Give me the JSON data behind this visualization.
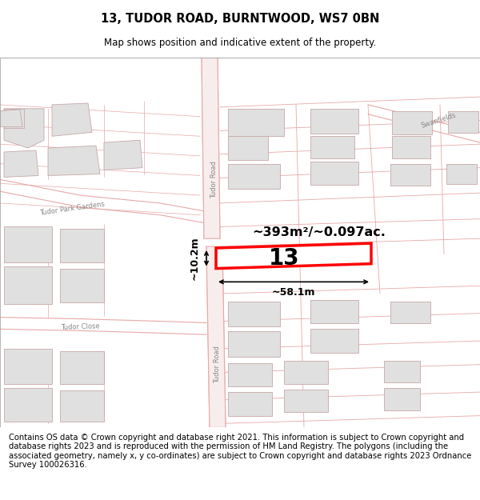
{
  "title": "13, TUDOR ROAD, BURNTWOOD, WS7 0BN",
  "subtitle": "Map shows position and indicative extent of the property.",
  "footer": "Contains OS data © Crown copyright and database right 2021. This information is subject to Crown copyright and database rights 2023 and is reproduced with the permission of HM Land Registry. The polygons (including the associated geometry, namely x, y co-ordinates) are subject to Crown copyright and database rights 2023 Ordnance Survey 100026316.",
  "area_text": "~393m²/~0.097ac.",
  "number_text": "13",
  "dim_width": "~58.1m",
  "dim_height": "~10.2m",
  "title_fontsize": 10.5,
  "subtitle_fontsize": 8.5,
  "footer_fontsize": 7.2,
  "map_bg": "#ffffff",
  "road_line_color": "#e8a8a8",
  "building_fill": "#e0e0e0",
  "building_edge": "#c8a8a8",
  "highlight_color": "#ff0000",
  "label_color": "#888888",
  "annotation_color": "#000000"
}
